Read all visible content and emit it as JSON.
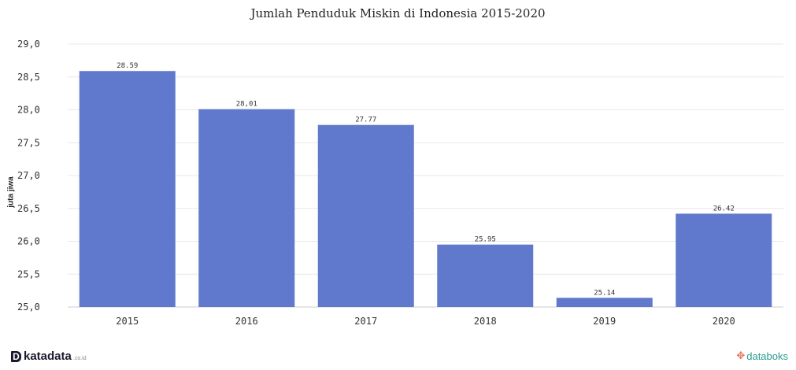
{
  "chart_data": {
    "type": "bar",
    "title": "Jumlah Penduduk Miskin di Indonesia 2015-2020",
    "ylabel": "juta jiwa",
    "xlabel": "",
    "categories": [
      "2015",
      "2016",
      "2017",
      "2018",
      "2019",
      "2020"
    ],
    "values": [
      28.59,
      28.01,
      27.77,
      25.95,
      25.14,
      26.42
    ],
    "value_labels": [
      "28.59",
      "28,01",
      "27.77",
      "25.95",
      "25.14",
      "26.42"
    ],
    "ylim": [
      25.0,
      29.0
    ],
    "yticks": [
      25.0,
      25.5,
      26.0,
      26.5,
      27.0,
      27.5,
      28.0,
      28.5,
      29.0
    ],
    "ytick_labels": [
      "25,0",
      "25,5",
      "26,0",
      "26,5",
      "27,0",
      "27,5",
      "28,0",
      "28,5",
      "29,0"
    ],
    "grid": true,
    "bar_color": "#6079cc",
    "grid_color": "#e8e8e8"
  },
  "footer": {
    "left_brand_mark": "D",
    "left_brand": "katadata",
    "left_brand_suffix": ".co.id",
    "right_brand_mark_icon": "databoks-logo-icon",
    "right_brand": "databoks"
  }
}
